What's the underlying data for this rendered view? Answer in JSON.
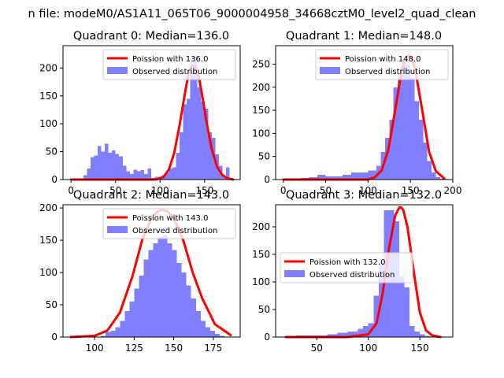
{
  "suptitle": "n file: modeM0/AS1A11_065T06_9000004958_34668cztM0_level2_quad_clean",
  "colors": {
    "observed": "#7f7fff",
    "fit": "#ff0000"
  },
  "chart_data": [
    {
      "type": "histogram+line",
      "title": "Quadrant 0: Median=136.0",
      "xlim": [
        -9,
        190
      ],
      "ylim": [
        0,
        240
      ],
      "xticks": [
        0,
        50,
        100,
        150
      ],
      "yticks": [
        0,
        50,
        100,
        150,
        200
      ],
      "legend_position": "top-right",
      "legend": [
        "Poission with 136.0",
        "Observed distribution"
      ],
      "hist": {
        "bin_edges": [
          14,
          18,
          22,
          26,
          30,
          34,
          38,
          42,
          46,
          50,
          54,
          58,
          62,
          66,
          70,
          74,
          78,
          82,
          86,
          90,
          94,
          98,
          102,
          106,
          110,
          114,
          118,
          122,
          126,
          130,
          134,
          138,
          142,
          146,
          150,
          154,
          158,
          162,
          166,
          170,
          174,
          178,
          182
        ],
        "counts": [
          8,
          20,
          40,
          43,
          60,
          50,
          64,
          48,
          52,
          46,
          42,
          25,
          15,
          10,
          18,
          15,
          17,
          10,
          20,
          3,
          5,
          5,
          8,
          12,
          20,
          22,
          48,
          85,
          135,
          145,
          195,
          220,
          165,
          140,
          127,
          85,
          75,
          45,
          25,
          5,
          22,
          0
        ]
      },
      "fit": {
        "x": [
          0,
          40,
          80,
          96,
          104,
          110,
          116,
          122,
          128,
          132,
          136,
          140,
          144,
          148,
          152,
          158,
          164,
          170,
          176,
          182
        ],
        "y": [
          0,
          0,
          0,
          0,
          5,
          18,
          48,
          98,
          155,
          190,
          205,
          200,
          180,
          145,
          105,
          55,
          23,
          8,
          2,
          0
        ]
      }
    },
    {
      "type": "histogram+line",
      "title": "Quadrant 1: Median=148.0",
      "xlim": [
        -9,
        200
      ],
      "ylim": [
        0,
        290
      ],
      "xticks": [
        0,
        50,
        100,
        150,
        200
      ],
      "yticks": [
        0,
        50,
        100,
        150,
        200,
        250
      ],
      "legend_position": "top-right",
      "legend": [
        "Poission with 148.0",
        "Observed distribution"
      ],
      "hist": {
        "bin_edges": [
          10,
          20,
          30,
          40,
          50,
          60,
          70,
          80,
          90,
          100,
          110,
          115,
          120,
          125,
          130,
          135,
          140,
          145,
          150,
          155,
          160,
          165,
          170,
          175,
          180,
          185,
          190
        ],
        "counts": [
          2,
          3,
          5,
          10,
          7,
          7,
          10,
          15,
          15,
          20,
          30,
          60,
          90,
          130,
          200,
          230,
          260,
          250,
          220,
          170,
          130,
          80,
          40,
          15,
          5,
          2
        ]
      },
      "fit": {
        "x": [
          0,
          60,
          100,
          108,
          116,
          124,
          132,
          140,
          144,
          148,
          152,
          156,
          164,
          172,
          180,
          190
        ],
        "y": [
          0,
          0,
          0,
          5,
          20,
          65,
          150,
          240,
          262,
          270,
          262,
          235,
          150,
          60,
          18,
          2
        ]
      }
    },
    {
      "type": "histogram+line",
      "title": "Quadrant 2: Median=143.0",
      "xlim": [
        80,
        192
      ],
      "ylim": [
        0,
        205
      ],
      "xticks": [
        100,
        125,
        150,
        175
      ],
      "yticks": [
        0,
        50,
        100,
        150,
        200
      ],
      "legend_position": "top-right",
      "legend": [
        "Poission with 143.0",
        "Observed distribution"
      ],
      "hist": {
        "bin_edges": [
          104,
          107,
          110,
          113,
          116,
          119,
          122,
          125,
          128,
          131,
          134,
          137,
          140,
          143,
          146,
          149,
          152,
          155,
          158,
          161,
          164,
          167,
          170,
          173,
          176,
          179,
          182
        ],
        "counts": [
          2,
          8,
          10,
          15,
          25,
          40,
          55,
          75,
          95,
          120,
          135,
          145,
          155,
          158,
          145,
          135,
          115,
          100,
          80,
          60,
          40,
          25,
          15,
          10,
          5,
          2
        ]
      },
      "fit": {
        "x": [
          85,
          100,
          108,
          116,
          124,
          130,
          136,
          140,
          143,
          146,
          150,
          156,
          162,
          168,
          176,
          186
        ],
        "y": [
          0,
          2,
          10,
          38,
          95,
          150,
          185,
          195,
          197,
          195,
          185,
          150,
          100,
          60,
          20,
          3
        ]
      }
    },
    {
      "type": "histogram+line",
      "title": "Quadrant 3: Median=132.0",
      "xlim": [
        10,
        182
      ],
      "ylim": [
        0,
        240
      ],
      "xticks": [
        50,
        100,
        150
      ],
      "yticks": [
        0,
        50,
        100,
        150,
        200
      ],
      "legend_position": "center-left",
      "legend": [
        "Poission with 132.0",
        "Observed distribution"
      ],
      "hist": {
        "bin_edges": [
          20,
          30,
          40,
          50,
          60,
          70,
          80,
          90,
          95,
          100,
          105,
          110,
          115,
          120,
          125,
          130,
          135,
          140,
          145,
          150,
          155,
          160,
          165,
          170
        ],
        "counts": [
          2,
          3,
          3,
          3,
          5,
          8,
          10,
          15,
          20,
          25,
          75,
          135,
          230,
          230,
          210,
          110,
          90,
          20,
          10,
          5,
          2,
          0,
          0
        ]
      },
      "fit": {
        "x": [
          20,
          80,
          100,
          108,
          114,
          120,
          126,
          130,
          132,
          134,
          138,
          144,
          150,
          156,
          162,
          170
        ],
        "y": [
          0,
          0,
          5,
          25,
          80,
          160,
          220,
          235,
          235,
          230,
          200,
          120,
          45,
          12,
          3,
          0
        ]
      }
    }
  ]
}
